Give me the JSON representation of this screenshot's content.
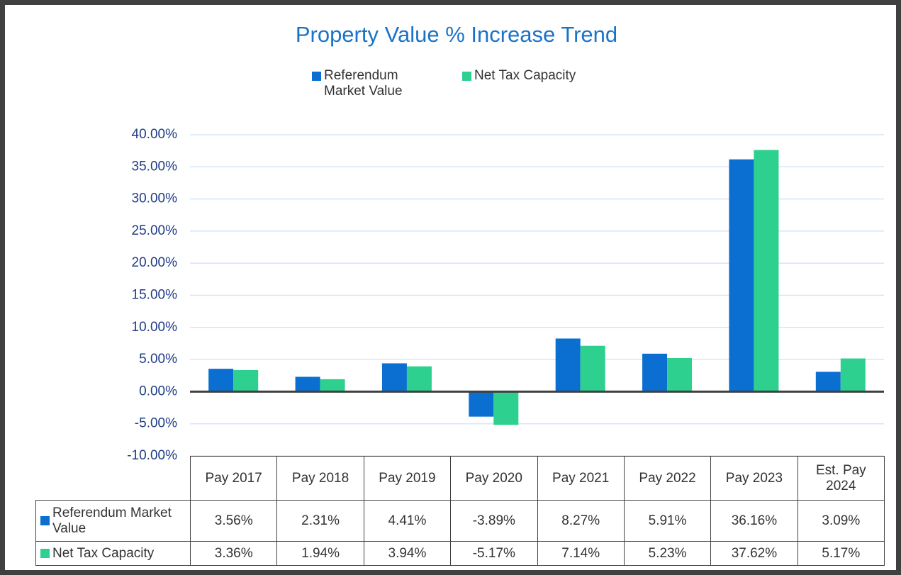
{
  "chart_data": {
    "type": "bar",
    "title": "Property Value % Increase Trend",
    "categories": [
      "Pay 2017",
      "Pay 2018",
      "Pay 2019",
      "Pay 2020",
      "Pay 2021",
      "Pay 2022",
      "Pay 2023",
      "Est. Pay 2024"
    ],
    "series": [
      {
        "name": "Referendum Market Value",
        "color": "#0b6fd1",
        "values": [
          3.56,
          2.31,
          4.41,
          -3.89,
          8.27,
          5.91,
          36.16,
          3.09
        ],
        "value_labels": [
          "3.56%",
          "2.31%",
          "4.41%",
          "-3.89%",
          "8.27%",
          "5.91%",
          "36.16%",
          "3.09%"
        ]
      },
      {
        "name": "Net Tax Capacity",
        "color": "#2ed08f",
        "values": [
          3.36,
          1.94,
          3.94,
          -5.17,
          7.14,
          5.23,
          37.62,
          5.17
        ],
        "value_labels": [
          "3.36%",
          "1.94%",
          "3.94%",
          "-5.17%",
          "7.14%",
          "5.23%",
          "37.62%",
          "5.17%"
        ]
      }
    ],
    "ylim": [
      -10,
      40
    ],
    "yticks": [
      {
        "value": -10,
        "label": "-10.00%"
      },
      {
        "value": -5,
        "label": "-5.00%"
      },
      {
        "value": 0,
        "label": "0.00%"
      },
      {
        "value": 5,
        "label": "5.00%"
      },
      {
        "value": 10,
        "label": "10.00%"
      },
      {
        "value": 15,
        "label": "15.00%"
      },
      {
        "value": 20,
        "label": "20.00%"
      },
      {
        "value": 25,
        "label": "25.00%"
      },
      {
        "value": 30,
        "label": "30.00%"
      },
      {
        "value": 35,
        "label": "35.00%"
      },
      {
        "value": 40,
        "label": "40.00%"
      }
    ],
    "grid": true
  }
}
